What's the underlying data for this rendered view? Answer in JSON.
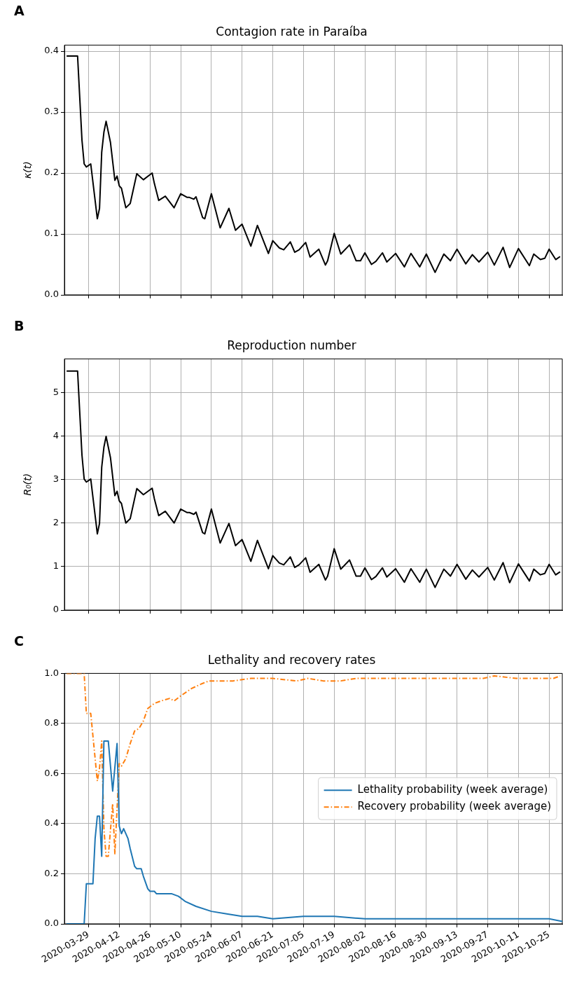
{
  "chart_data": [
    {
      "type": "line",
      "title": "Contagion rate in Paraíba",
      "ylabel": "κ(t)",
      "annotations": [
        "A"
      ],
      "grid": true,
      "tick_labels": "y",
      "xlim": [
        "2020-03-18",
        "2020-10-31"
      ],
      "xticks": [
        "2020-03-29",
        "2020-04-12",
        "2020-04-26",
        "2020-05-10",
        "2020-05-24",
        "2020-06-07",
        "2020-06-21",
        "2020-07-05",
        "2020-07-19",
        "2020-08-02",
        "2020-08-16",
        "2020-08-30",
        "2020-09-13",
        "2020-09-27",
        "2020-10-11",
        "2020-10-25"
      ],
      "ylim": [
        0,
        0.41
      ],
      "yticks": [
        {
          "value": 0,
          "label": "0.0"
        },
        {
          "value": 0.1,
          "label": "0.1"
        },
        {
          "value": 0.2,
          "label": "0.2"
        },
        {
          "value": 0.3,
          "label": "0.3"
        },
        {
          "value": 0.4,
          "label": "0.4"
        }
      ],
      "color": "#000000",
      "x": [
        "2020-03-19",
        "2020-03-24",
        "2020-03-26",
        "2020-03-27",
        "2020-03-28",
        "2020-03-30",
        "2020-04-02",
        "2020-04-03",
        "2020-04-04",
        "2020-04-05",
        "2020-04-06",
        "2020-04-08",
        "2020-04-10",
        "2020-04-11",
        "2020-04-12",
        "2020-04-13",
        "2020-04-15",
        "2020-04-17",
        "2020-04-20",
        "2020-04-23",
        "2020-04-27",
        "2020-04-28",
        "2020-04-30",
        "2020-05-03",
        "2020-05-07",
        "2020-05-10",
        "2020-05-13",
        "2020-05-14",
        "2020-05-16",
        "2020-05-17",
        "2020-05-20",
        "2020-05-21",
        "2020-05-24",
        "2020-05-28",
        "2020-06-01",
        "2020-06-04",
        "2020-06-07",
        "2020-06-11",
        "2020-06-14",
        "2020-06-19",
        "2020-06-21",
        "2020-06-24",
        "2020-06-26",
        "2020-06-29",
        "2020-07-01",
        "2020-07-03",
        "2020-07-06",
        "2020-07-08",
        "2020-07-12",
        "2020-07-15",
        "2020-07-16",
        "2020-07-19",
        "2020-07-22",
        "2020-07-26",
        "2020-07-29",
        "2020-07-31",
        "2020-08-02",
        "2020-08-05",
        "2020-08-07",
        "2020-08-10",
        "2020-08-12",
        "2020-08-16",
        "2020-08-20",
        "2020-08-23",
        "2020-08-27",
        "2020-08-30",
        "2020-09-03",
        "2020-09-07",
        "2020-09-10",
        "2020-09-13",
        "2020-09-17",
        "2020-09-20",
        "2020-09-23",
        "2020-09-27",
        "2020-09-30",
        "2020-10-04",
        "2020-10-07",
        "2020-10-11",
        "2020-10-16",
        "2020-10-18",
        "2020-10-21",
        "2020-10-23",
        "2020-10-25",
        "2020-10-28",
        "2020-10-30"
      ],
      "values": [
        0.392,
        0.392,
        0.254,
        0.215,
        0.21,
        0.215,
        0.125,
        0.142,
        0.234,
        0.267,
        0.285,
        0.25,
        0.188,
        0.195,
        0.179,
        0.175,
        0.143,
        0.15,
        0.199,
        0.189,
        0.2,
        0.183,
        0.155,
        0.162,
        0.143,
        0.166,
        0.16,
        0.16,
        0.157,
        0.161,
        0.127,
        0.125,
        0.166,
        0.11,
        0.142,
        0.106,
        0.116,
        0.08,
        0.114,
        0.068,
        0.089,
        0.077,
        0.074,
        0.087,
        0.07,
        0.074,
        0.086,
        0.062,
        0.075,
        0.049,
        0.056,
        0.101,
        0.067,
        0.082,
        0.056,
        0.056,
        0.069,
        0.05,
        0.055,
        0.069,
        0.054,
        0.068,
        0.046,
        0.068,
        0.046,
        0.067,
        0.037,
        0.067,
        0.056,
        0.075,
        0.051,
        0.066,
        0.054,
        0.07,
        0.049,
        0.078,
        0.045,
        0.076,
        0.048,
        0.067,
        0.058,
        0.06,
        0.075,
        0.058,
        0.063
      ]
    },
    {
      "type": "line",
      "title": "Reproduction number",
      "ylabel": "R₀(t)",
      "annotations": [
        "B"
      ],
      "grid": true,
      "tick_labels": "y",
      "xlim": [
        "2020-03-18",
        "2020-10-31"
      ],
      "xticks": [
        "2020-03-29",
        "2020-04-12",
        "2020-04-26",
        "2020-05-10",
        "2020-05-24",
        "2020-06-07",
        "2020-06-21",
        "2020-07-05",
        "2020-07-19",
        "2020-08-02",
        "2020-08-16",
        "2020-08-30",
        "2020-09-13",
        "2020-09-27",
        "2020-10-11",
        "2020-10-25"
      ],
      "ylim": [
        0,
        5.77
      ],
      "yticks": [
        0,
        1,
        2,
        3,
        4,
        5
      ],
      "color": "#000000",
      "x": [
        "2020-03-19",
        "2020-03-24",
        "2020-03-26",
        "2020-03-27",
        "2020-03-28",
        "2020-03-30",
        "2020-04-02",
        "2020-04-03",
        "2020-04-04",
        "2020-04-05",
        "2020-04-06",
        "2020-04-08",
        "2020-04-10",
        "2020-04-11",
        "2020-04-12",
        "2020-04-13",
        "2020-04-15",
        "2020-04-17",
        "2020-04-20",
        "2020-04-23",
        "2020-04-27",
        "2020-04-28",
        "2020-04-30",
        "2020-05-03",
        "2020-05-07",
        "2020-05-10",
        "2020-05-13",
        "2020-05-14",
        "2020-05-16",
        "2020-05-17",
        "2020-05-20",
        "2020-05-21",
        "2020-05-24",
        "2020-05-28",
        "2020-06-01",
        "2020-06-04",
        "2020-06-07",
        "2020-06-11",
        "2020-06-14",
        "2020-06-19",
        "2020-06-21",
        "2020-06-24",
        "2020-06-26",
        "2020-06-29",
        "2020-07-01",
        "2020-07-03",
        "2020-07-06",
        "2020-07-08",
        "2020-07-12",
        "2020-07-15",
        "2020-07-16",
        "2020-07-19",
        "2020-07-22",
        "2020-07-26",
        "2020-07-29",
        "2020-07-31",
        "2020-08-02",
        "2020-08-05",
        "2020-08-07",
        "2020-08-10",
        "2020-08-12",
        "2020-08-16",
        "2020-08-20",
        "2020-08-23",
        "2020-08-27",
        "2020-08-30",
        "2020-09-03",
        "2020-09-07",
        "2020-09-10",
        "2020-09-13",
        "2020-09-17",
        "2020-09-20",
        "2020-09-23",
        "2020-09-27",
        "2020-09-30",
        "2020-10-04",
        "2020-10-07",
        "2020-10-11",
        "2020-10-16",
        "2020-10-18",
        "2020-10-21",
        "2020-10-23",
        "2020-10-25",
        "2020-10-28",
        "2020-10-30"
      ],
      "values": [
        5.49,
        5.49,
        3.56,
        3.01,
        2.94,
        3.01,
        1.75,
        1.99,
        3.28,
        3.74,
        3.99,
        3.5,
        2.63,
        2.73,
        2.51,
        2.45,
        2.0,
        2.1,
        2.79,
        2.65,
        2.8,
        2.56,
        2.17,
        2.27,
        2.0,
        2.32,
        2.24,
        2.24,
        2.2,
        2.25,
        1.78,
        1.75,
        2.32,
        1.54,
        1.99,
        1.48,
        1.62,
        1.12,
        1.6,
        0.95,
        1.25,
        1.08,
        1.04,
        1.22,
        0.98,
        1.04,
        1.2,
        0.87,
        1.05,
        0.69,
        0.78,
        1.41,
        0.94,
        1.15,
        0.78,
        0.78,
        0.97,
        0.7,
        0.77,
        0.97,
        0.76,
        0.95,
        0.64,
        0.95,
        0.64,
        0.94,
        0.52,
        0.94,
        0.78,
        1.05,
        0.71,
        0.92,
        0.76,
        0.98,
        0.69,
        1.09,
        0.63,
        1.06,
        0.67,
        0.94,
        0.81,
        0.84,
        1.05,
        0.81,
        0.88
      ]
    },
    {
      "type": "line",
      "title": "Lethality and recovery rates",
      "annotations": [
        "C"
      ],
      "grid": true,
      "legend": "center right",
      "xlim": [
        "2020-03-18",
        "2020-10-31"
      ],
      "xticks": [
        "2020-03-29",
        "2020-04-12",
        "2020-04-26",
        "2020-05-10",
        "2020-05-24",
        "2020-06-07",
        "2020-06-21",
        "2020-07-05",
        "2020-07-19",
        "2020-08-02",
        "2020-08-16",
        "2020-08-30",
        "2020-09-13",
        "2020-09-27",
        "2020-10-11",
        "2020-10-25"
      ],
      "ylim": [
        0,
        1
      ],
      "yticks": [
        {
          "value": 0,
          "label": "0.0"
        },
        {
          "value": 0.2,
          "label": "0.2"
        },
        {
          "value": 0.4,
          "label": "0.4"
        },
        {
          "value": 0.6,
          "label": "0.6"
        },
        {
          "value": 0.8,
          "label": "0.8"
        },
        {
          "value": 1,
          "label": "1.0"
        }
      ],
      "series": [
        {
          "name": "Lethality probability (week average)",
          "color": "#1f77b4",
          "line_style": "solid",
          "x": [
            "2020-03-19",
            "2020-03-27",
            "2020-03-28",
            "2020-03-31",
            "2020-04-01",
            "2020-04-02",
            "2020-04-03",
            "2020-04-04",
            "2020-04-05",
            "2020-04-07",
            "2020-04-09",
            "2020-04-11",
            "2020-04-12",
            "2020-04-13",
            "2020-04-14",
            "2020-04-16",
            "2020-04-17",
            "2020-04-19",
            "2020-04-20",
            "2020-04-22",
            "2020-04-23",
            "2020-04-25",
            "2020-04-26",
            "2020-04-28",
            "2020-04-29",
            "2020-05-03",
            "2020-05-06",
            "2020-05-09",
            "2020-05-12",
            "2020-05-17",
            "2020-05-24",
            "2020-05-31",
            "2020-06-07",
            "2020-06-14",
            "2020-06-21",
            "2020-07-05",
            "2020-07-19",
            "2020-08-02",
            "2020-08-16",
            "2020-08-30",
            "2020-09-13",
            "2020-09-27",
            "2020-10-11",
            "2020-10-25",
            "2020-10-31"
          ],
          "values": [
            0,
            0,
            0.16,
            0.16,
            0.34,
            0.43,
            0.43,
            0.27,
            0.73,
            0.73,
            0.53,
            0.72,
            0.39,
            0.36,
            0.38,
            0.34,
            0.3,
            0.23,
            0.22,
            0.22,
            0.19,
            0.14,
            0.13,
            0.13,
            0.12,
            0.12,
            0.12,
            0.11,
            0.09,
            0.07,
            0.05,
            0.04,
            0.03,
            0.03,
            0.02,
            0.03,
            0.03,
            0.02,
            0.02,
            0.02,
            0.02,
            0.02,
            0.02,
            0.02,
            0.01
          ]
        },
        {
          "name": "Recovery probability (week average)",
          "color": "#ff7f0e",
          "line_style": "dashdot",
          "x": [
            "2020-03-19",
            "2020-03-27",
            "2020-03-28",
            "2020-03-30",
            "2020-04-01",
            "2020-04-02",
            "2020-04-03",
            "2020-04-04",
            "2020-04-05",
            "2020-04-06",
            "2020-04-07",
            "2020-04-09",
            "2020-04-10",
            "2020-04-12",
            "2020-04-13",
            "2020-04-15",
            "2020-04-17",
            "2020-04-19",
            "2020-04-21",
            "2020-04-23",
            "2020-04-25",
            "2020-04-28",
            "2020-05-01",
            "2020-05-05",
            "2020-05-07",
            "2020-05-10",
            "2020-05-15",
            "2020-05-20",
            "2020-05-23",
            "2020-05-27",
            "2020-06-03",
            "2020-06-11",
            "2020-06-21",
            "2020-07-02",
            "2020-07-07",
            "2020-07-14",
            "2020-07-22",
            "2020-07-29",
            "2020-08-08",
            "2020-08-22",
            "2020-09-04",
            "2020-09-19",
            "2020-09-25",
            "2020-09-30",
            "2020-10-10",
            "2020-10-21",
            "2020-10-27",
            "2020-10-30"
          ],
          "values": [
            1,
            1,
            0.84,
            0.84,
            0.66,
            0.57,
            0.62,
            0.73,
            0.38,
            0.27,
            0.27,
            0.48,
            0.28,
            0.64,
            0.63,
            0.66,
            0.72,
            0.77,
            0.78,
            0.81,
            0.86,
            0.88,
            0.89,
            0.9,
            0.89,
            0.91,
            0.94,
            0.96,
            0.97,
            0.97,
            0.97,
            0.98,
            0.98,
            0.97,
            0.98,
            0.97,
            0.97,
            0.98,
            0.98,
            0.98,
            0.98,
            0.98,
            0.98,
            0.99,
            0.98,
            0.98,
            0.98,
            0.99
          ]
        }
      ]
    }
  ]
}
